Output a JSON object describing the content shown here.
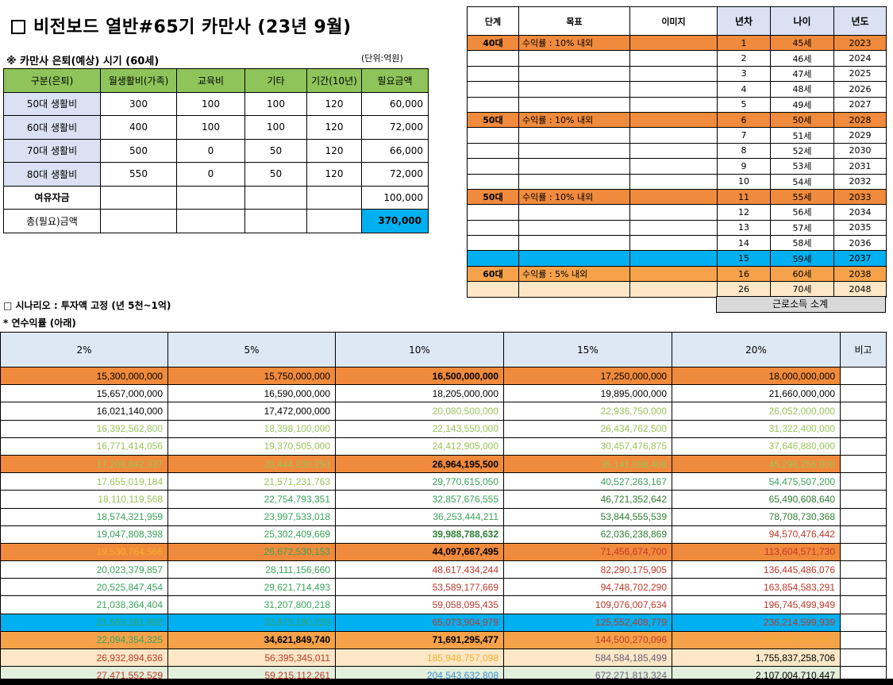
{
  "title": "비전보드 열반#65기 카만사 (23년 9월)",
  "retire_label": "※ 카만사 은퇴(예상) 시기 (60세)",
  "unit_label": "(단위:억원)",
  "life_table": {
    "headers": [
      "구분(은퇴)",
      "월생활비(가족)",
      "교육비",
      "기타",
      "기간(10년)",
      "필요금액"
    ],
    "rows": [
      {
        "label": "50대 생활비",
        "monthly": "300",
        "edu": "100",
        "etc": "100",
        "period": "120",
        "need": "60,000"
      },
      {
        "label": "60대 생활비",
        "monthly": "400",
        "edu": "100",
        "etc": "100",
        "period": "120",
        "need": "72,000"
      },
      {
        "label": "70대 생활비",
        "monthly": "500",
        "edu": "0",
        "etc": "50",
        "period": "120",
        "need": "66,000"
      },
      {
        "label": "80대 생활비",
        "monthly": "550",
        "edu": "0",
        "etc": "50",
        "period": "120",
        "need": "72,000"
      }
    ],
    "spare_label": "여유자금",
    "spare_value": "100,000",
    "total_label": "총(필요)금액",
    "total_value": "370,000"
  },
  "plan_table": {
    "headers": [
      "단계",
      "목표",
      "이미지",
      "년차",
      "나이",
      "년도"
    ],
    "rows": [
      {
        "stage": "40대",
        "goal": "수익률 : 10% 내외",
        "n": "1",
        "age": "45세",
        "year": "2023",
        "style": "orange"
      },
      {
        "stage": "",
        "goal": "",
        "n": "2",
        "age": "46세",
        "year": "2024",
        "style": ""
      },
      {
        "stage": "",
        "goal": "",
        "n": "3",
        "age": "47세",
        "year": "2025",
        "style": ""
      },
      {
        "stage": "",
        "goal": "",
        "n": "4",
        "age": "48세",
        "year": "2026",
        "style": ""
      },
      {
        "stage": "",
        "goal": "",
        "n": "5",
        "age": "49세",
        "year": "2027",
        "style": ""
      },
      {
        "stage": "50대",
        "goal": "수익률 : 10% 내외",
        "n": "6",
        "age": "50세",
        "year": "2028",
        "style": "orange"
      },
      {
        "stage": "",
        "goal": "",
        "n": "7",
        "age": "51세",
        "year": "2029",
        "style": ""
      },
      {
        "stage": "",
        "goal": "",
        "n": "8",
        "age": "52세",
        "year": "2030",
        "style": ""
      },
      {
        "stage": "",
        "goal": "",
        "n": "9",
        "age": "53세",
        "year": "2031",
        "style": ""
      },
      {
        "stage": "",
        "goal": "",
        "n": "10",
        "age": "54세",
        "year": "2032",
        "style": ""
      },
      {
        "stage": "50대",
        "goal": "수익률 : 10% 내외",
        "n": "11",
        "age": "55세",
        "year": "2033",
        "style": "orange"
      },
      {
        "stage": "",
        "goal": "",
        "n": "12",
        "age": "56세",
        "year": "2034",
        "style": ""
      },
      {
        "stage": "",
        "goal": "",
        "n": "13",
        "age": "57세",
        "year": "2035",
        "style": ""
      },
      {
        "stage": "",
        "goal": "",
        "n": "14",
        "age": "58세",
        "year": "2036",
        "style": ""
      },
      {
        "stage": "",
        "goal": "",
        "n": "15",
        "age": "59세",
        "year": "2037",
        "style": "blue"
      },
      {
        "stage": "60대",
        "goal": "수익률 : 5% 내외",
        "n": "16",
        "age": "60세",
        "year": "2038",
        "style": "lorange"
      },
      {
        "stage": "",
        "goal": "",
        "n": "26",
        "age": "70세",
        "year": "2048",
        "style": "peach"
      }
    ],
    "labor_label": "근로소득 소계"
  },
  "scenario_label": "□ 시나리오 : 투자액 고정 (년 5천~1억)",
  "rate_label": "* 연수익률 (아래)",
  "scenario_table": {
    "headers": [
      "2%",
      "5%",
      "10%",
      "15%",
      "20%",
      "비고"
    ],
    "colors": {
      "orange": "#f08a3c",
      "lorange": "#f5a24a",
      "blue": "#00b0f0",
      "peach": "#fde7c6",
      "mint": "#e2efda",
      "black": "#000000",
      "lgreen": "#9bc45a",
      "green": "#3aa35a",
      "dgreen": "#2e7d32",
      "red": "#c0392b",
      "purple": "#6a5a7a",
      "gold": "#f0b030",
      "cyan": "#3a8fd0"
    },
    "rows": [
      {
        "bg": "orange",
        "cells": [
          {
            "v": "15,300,000,000",
            "c": "black"
          },
          {
            "v": "15,750,000,000",
            "c": "black"
          },
          {
            "v": "16,500,000,000",
            "c": "black",
            "b": true
          },
          {
            "v": "17,250,000,000",
            "c": "black"
          },
          {
            "v": "18,000,000,000",
            "c": "black"
          }
        ]
      },
      {
        "bg": "",
        "cells": [
          {
            "v": "15,657,000,000",
            "c": "black"
          },
          {
            "v": "16,590,000,000",
            "c": "black"
          },
          {
            "v": "18,205,000,000",
            "c": "black"
          },
          {
            "v": "19,895,000,000",
            "c": "black"
          },
          {
            "v": "21,660,000,000",
            "c": "black"
          }
        ]
      },
      {
        "bg": "",
        "cells": [
          {
            "v": "16,021,140,000",
            "c": "black"
          },
          {
            "v": "17,472,000,000",
            "c": "black"
          },
          {
            "v": "20,080,500,000",
            "c": "lgreen"
          },
          {
            "v": "22,936,750,000",
            "c": "lgreen"
          },
          {
            "v": "26,052,000,000",
            "c": "lgreen"
          }
        ]
      },
      {
        "bg": "",
        "cells": [
          {
            "v": "16,392,562,800",
            "c": "lgreen"
          },
          {
            "v": "18,398,100,000",
            "c": "lgreen"
          },
          {
            "v": "22,143,550,000",
            "c": "lgreen"
          },
          {
            "v": "26,434,762,500",
            "c": "lgreen"
          },
          {
            "v": "31,322,400,000",
            "c": "lgreen"
          }
        ]
      },
      {
        "bg": "",
        "cells": [
          {
            "v": "16,771,414,056",
            "c": "lgreen"
          },
          {
            "v": "19,370,505,000",
            "c": "lgreen"
          },
          {
            "v": "24,412,905,000",
            "c": "lgreen"
          },
          {
            "v": "30,457,476,875",
            "c": "lgreen"
          },
          {
            "v": "37,646,880,000",
            "c": "lgreen"
          }
        ]
      },
      {
        "bg": "orange",
        "cells": [
          {
            "v": "17,208,842,337",
            "c": "lgreen"
          },
          {
            "v": "20,444,030,250",
            "c": "lgreen"
          },
          {
            "v": "26,964,195,500",
            "c": "black",
            "b": true
          },
          {
            "v": "35,141,098,406",
            "c": "lgreen"
          },
          {
            "v": "45,296,256,000",
            "c": "lgreen"
          }
        ]
      },
      {
        "bg": "",
        "cells": [
          {
            "v": "17,655,019,184",
            "c": "lgreen"
          },
          {
            "v": "21,571,231,763",
            "c": "lgreen"
          },
          {
            "v": "29,770,615,050",
            "c": "green"
          },
          {
            "v": "40,527,263,167",
            "c": "green"
          },
          {
            "v": "54,475,507,200",
            "c": "green"
          }
        ]
      },
      {
        "bg": "",
        "cells": [
          {
            "v": "18,110,119,568",
            "c": "lgreen"
          },
          {
            "v": "22,754,793,351",
            "c": "green"
          },
          {
            "v": "32,857,676,555",
            "c": "green"
          },
          {
            "v": "46,721,352,642",
            "c": "dgreen"
          },
          {
            "v": "65,490,608,640",
            "c": "dgreen"
          }
        ]
      },
      {
        "bg": "",
        "cells": [
          {
            "v": "18,574,321,959",
            "c": "green"
          },
          {
            "v": "23,997,533,018",
            "c": "green"
          },
          {
            "v": "36,253,444,211",
            "c": "green"
          },
          {
            "v": "53,844,555,539",
            "c": "dgreen"
          },
          {
            "v": "78,708,730,368",
            "c": "dgreen"
          }
        ]
      },
      {
        "bg": "",
        "cells": [
          {
            "v": "19,047,808,398",
            "c": "green"
          },
          {
            "v": "25,302,409,669",
            "c": "green"
          },
          {
            "v": "39,988,788,632",
            "c": "dgreen",
            "b": true
          },
          {
            "v": "62,036,238,869",
            "c": "dgreen"
          },
          {
            "v": "94,570,476,442",
            "c": "red"
          }
        ]
      },
      {
        "bg": "orange",
        "cells": [
          {
            "v": "19,530,764,566",
            "c": "gold"
          },
          {
            "v": "26,672,530,153",
            "c": "green"
          },
          {
            "v": "44,097,667,495",
            "c": "black",
            "b": true
          },
          {
            "v": "71,456,674,700",
            "c": "red"
          },
          {
            "v": "113,604,571,730",
            "c": "red"
          }
        ]
      },
      {
        "bg": "",
        "cells": [
          {
            "v": "20,023,379,857",
            "c": "green"
          },
          {
            "v": "28,111,156,660",
            "c": "green"
          },
          {
            "v": "48,617,434,244",
            "c": "red"
          },
          {
            "v": "82,290,175,905",
            "c": "red"
          },
          {
            "v": "136,445,486,076",
            "c": "red"
          }
        ]
      },
      {
        "bg": "",
        "cells": [
          {
            "v": "20,525,847,454",
            "c": "green"
          },
          {
            "v": "29,621,714,493",
            "c": "green"
          },
          {
            "v": "53,589,177,669",
            "c": "red"
          },
          {
            "v": "94,748,702,290",
            "c": "red"
          },
          {
            "v": "163,854,583,291",
            "c": "red"
          }
        ]
      },
      {
        "bg": "",
        "cells": [
          {
            "v": "21,038,364,404",
            "c": "green"
          },
          {
            "v": "31,207,800,218",
            "c": "green"
          },
          {
            "v": "59,058,095,435",
            "c": "red"
          },
          {
            "v": "109,076,007,634",
            "c": "red"
          },
          {
            "v": "196,745,499,949",
            "c": "red"
          }
        ]
      },
      {
        "bg": "blue",
        "cells": [
          {
            "v": "21,563,161,692",
            "c": "green"
          },
          {
            "v": "32,873,190,229",
            "c": "green"
          },
          {
            "v": "65,073,904,979",
            "c": "red"
          },
          {
            "v": "125,552,408,779",
            "c": "red"
          },
          {
            "v": "236,214,599,939",
            "c": "red"
          }
        ]
      },
      {
        "bg": "lorange",
        "cells": [
          {
            "v": "22,094,354,325",
            "c": "green"
          },
          {
            "v": "34,621,849,740",
            "c": "black",
            "b": true
          },
          {
            "v": "71,691,295,477",
            "c": "black",
            "b": true
          },
          {
            "v": "144,500,270,096",
            "c": "red"
          },
          {
            "v": "283,457,519,927",
            "c": "gold"
          }
        ]
      },
      {
        "bg": "peach",
        "cells": [
          {
            "v": "26,932,894,636",
            "c": "red"
          },
          {
            "v": "56,395,345,011",
            "c": "red"
          },
          {
            "v": "185,948,757,098",
            "c": "gold"
          },
          {
            "v": "584,584,185,499",
            "c": "purple"
          },
          {
            "v": "1,755,837,258,706",
            "c": "black"
          }
        ]
      },
      {
        "bg": "mint",
        "cells": [
          {
            "v": "27,471,552,529",
            "c": "red"
          },
          {
            "v": "59,215,112,261",
            "c": "red"
          },
          {
            "v": "204,543,632,808",
            "c": "cyan"
          },
          {
            "v": "672,271,813,324",
            "c": "purple"
          },
          {
            "v": "2,107,004,710,447",
            "c": "black"
          }
        ]
      }
    ]
  }
}
